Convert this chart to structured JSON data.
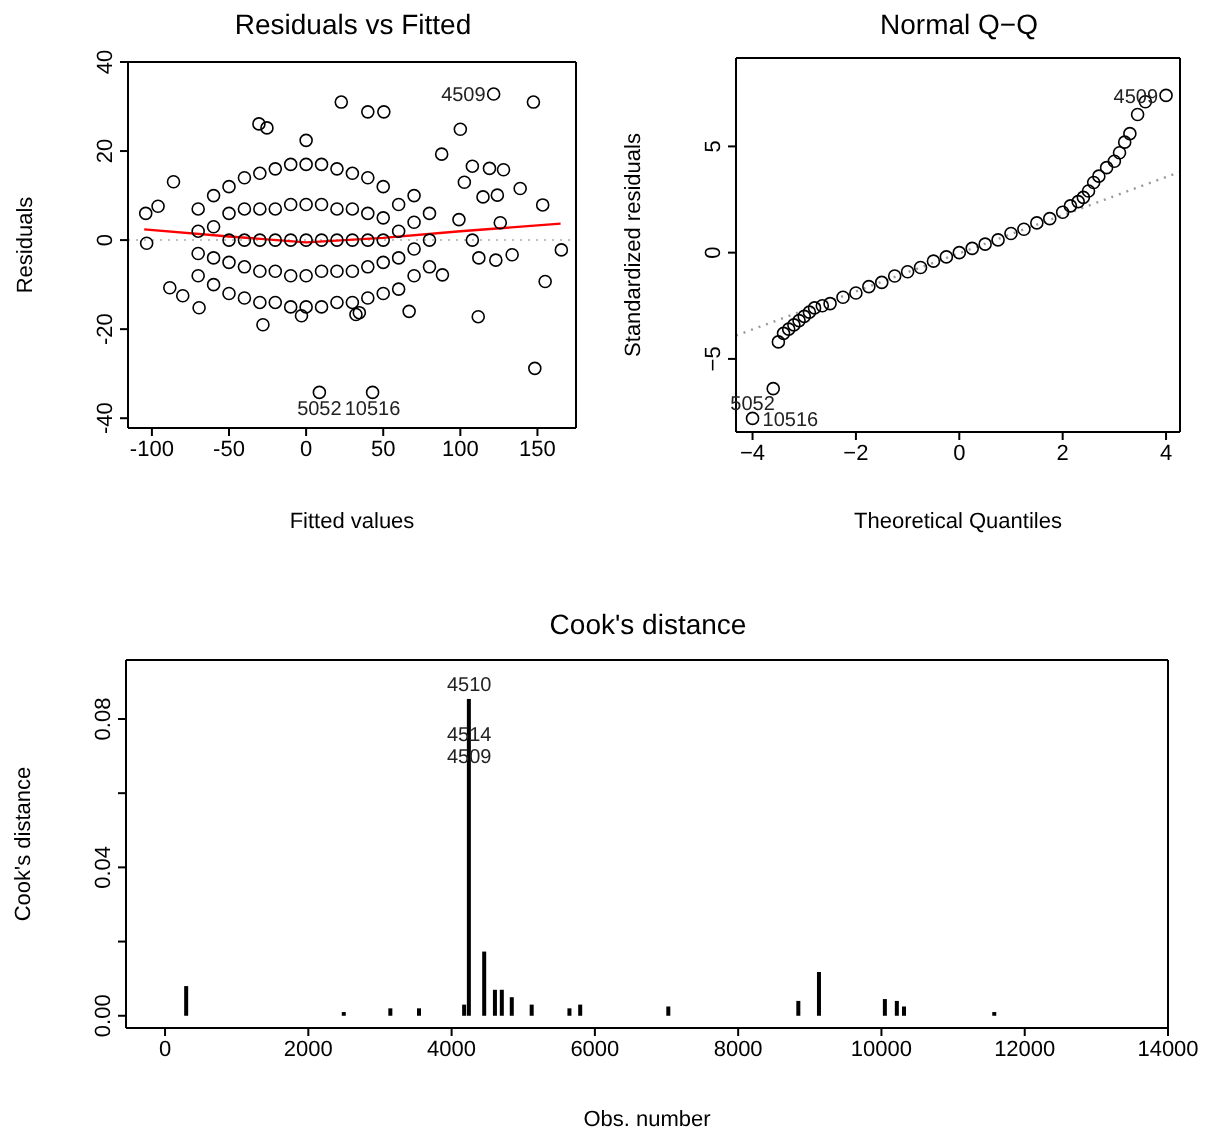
{
  "chart_data": [
    {
      "type": "scatter",
      "title": "Residuals vs Fitted",
      "xlabel": "Fitted values",
      "ylabel": "Residuals",
      "xlim": [
        -115.5,
        175
      ],
      "xticks": [
        -100,
        -50,
        0,
        50,
        100,
        150
      ],
      "ylim": [
        -42.2,
        40
      ],
      "yticks": [
        -40,
        -20,
        0,
        20,
        40
      ],
      "series": [
        {
          "type": "scatter",
          "marker": "circle",
          "color": "#000000",
          "x": [
            121.6,
            147.4,
            22.8,
            40,
            50.4,
            -30.6,
            -25.4,
            100,
            0,
            148.3,
            8.6,
            43.1,
            165.5,
            155,
            111.6,
            153.4,
            138.8,
            118.9,
            128,
            107.8,
            87.9,
            102.6,
            114.7,
            124,
            125.9,
            99.1,
            107.8,
            112,
            123,
            133.6,
            88.4,
            -96,
            -104,
            -88.4,
            -80,
            -69.4,
            -86,
            -28,
            -3,
            32.3,
            66.8,
            34.5,
            -103.4,
            -70,
            -70,
            -70,
            -70,
            -60,
            -60,
            -60,
            -60,
            -50,
            -50,
            -50,
            -50,
            -50,
            -40,
            -40,
            -40,
            -40,
            -40,
            -30,
            -30,
            -30,
            -30,
            -30,
            -20,
            -20,
            -20,
            -20,
            -20,
            -10,
            -10,
            -10,
            -10,
            -10,
            0,
            0,
            0,
            0,
            0,
            10,
            10,
            10,
            10,
            10,
            20,
            20,
            20,
            20,
            20,
            30,
            30,
            30,
            30,
            30,
            40,
            40,
            40,
            40,
            40,
            50,
            50,
            50,
            50,
            50,
            60,
            60,
            60,
            60,
            70,
            70,
            70,
            70,
            80,
            80,
            80
          ],
          "values": [
            32.8,
            31,
            31,
            28.8,
            28.8,
            26.1,
            25.2,
            24.9,
            22.4,
            -28.8,
            -34.2,
            -34.2,
            -2.2,
            -9.3,
            -17.2,
            7.9,
            11.6,
            16.1,
            15.8,
            16.6,
            19.3,
            13,
            9.7,
            10.1,
            3.9,
            4.6,
            0,
            -4,
            -4.5,
            -3.3,
            -7.8,
            7.6,
            6,
            -10.7,
            -12.5,
            -15.2,
            13.1,
            -19,
            -17,
            -16.7,
            -16,
            -16.3,
            -0.7,
            -8,
            -3,
            2,
            7,
            -10,
            -4,
            3,
            10,
            -12,
            -5,
            0,
            6,
            12,
            -13,
            -6,
            0,
            7,
            14,
            -14,
            -7,
            0,
            7,
            15,
            -14,
            -7,
            0,
            7,
            16,
            -15,
            -8,
            0,
            8,
            17,
            -15,
            -8,
            0,
            8,
            17,
            -15,
            -7,
            0,
            8,
            17,
            -14,
            -7,
            0,
            7,
            16,
            -14,
            -7,
            0,
            7,
            15,
            -13,
            -6,
            0,
            6,
            14,
            -12,
            -5,
            0,
            5,
            12,
            -11,
            -4,
            2,
            8,
            -8,
            -2,
            4,
            10,
            -6,
            0,
            6
          ]
        },
        {
          "type": "line",
          "marker": "none",
          "color": "#ff0000",
          "line_style": "solid",
          "x": [
            -105,
            -50,
            0,
            50,
            100,
            165
          ],
          "values": [
            2.4,
            0.8,
            -0.5,
            0.5,
            2,
            3.7
          ]
        }
      ],
      "ref_lines": [
        {
          "axis": "y",
          "value": 0,
          "color": "#bebebe",
          "line_style": "dotted"
        }
      ],
      "annotations": [
        {
          "text": "4509",
          "x": 121.6,
          "y": 32.8
        },
        {
          "text": "5052",
          "x": 8.6,
          "y": -34.2
        },
        {
          "text": "10516",
          "x": 43.1,
          "y": -34.2
        }
      ]
    },
    {
      "type": "scatter",
      "title": "Normal Q−Q",
      "xlabel": "Theoretical Quantiles",
      "ylabel": "Standardized residuals",
      "xlim": [
        -4.32,
        4.27
      ],
      "xticks": [
        {
          "value": -4,
          "label": "−4"
        },
        {
          "value": -2,
          "label": "−2"
        },
        0,
        2,
        4
      ],
      "ylim": [
        -8.44,
        9.16
      ],
      "yticks": [
        {
          "value": -5,
          "label": "−5"
        },
        0,
        5
      ],
      "series": [
        {
          "type": "scatter",
          "marker": "circle",
          "color": "#000000",
          "x": [
            -4,
            -3.6,
            -3.5,
            -3.4,
            -3.3,
            -3.2,
            -3.1,
            -3,
            -2.9,
            -2.8,
            -2.65,
            -2.5,
            -2.25,
            -2,
            -1.75,
            -1.5,
            -1.25,
            -1,
            -0.75,
            -0.5,
            -0.25,
            0,
            0.25,
            0.5,
            0.75,
            1,
            1.25,
            1.5,
            1.75,
            2,
            2.15,
            2.3,
            2.4,
            2.5,
            2.6,
            2.7,
            2.85,
            3,
            3.1,
            3.2,
            3.3,
            3.45,
            3.6,
            4
          ],
          "values": [
            -7.8,
            -6.4,
            -4.2,
            -3.8,
            -3.6,
            -3.4,
            -3.2,
            -3,
            -2.8,
            -2.6,
            -2.5,
            -2.4,
            -2.1,
            -1.9,
            -1.6,
            -1.4,
            -1.1,
            -0.9,
            -0.7,
            -0.4,
            -0.2,
            0,
            0.2,
            0.4,
            0.6,
            0.9,
            1.1,
            1.4,
            1.6,
            1.9,
            2.2,
            2.4,
            2.6,
            2.9,
            3.3,
            3.6,
            4,
            4.3,
            4.7,
            5.2,
            5.6,
            6.5,
            7.1,
            7.4
          ]
        },
        {
          "type": "line",
          "marker": "none",
          "color": "#999999",
          "line_style": "dotted",
          "x": [
            -4.32,
            4.27
          ],
          "values": [
            -3.9,
            3.8
          ]
        }
      ],
      "annotations": [
        {
          "text": "4509",
          "x": 4,
          "y": 7.4
        },
        {
          "text": "10516",
          "x": -4,
          "y": -7.8
        },
        {
          "text": "5052",
          "x": -4,
          "y": -7.8
        }
      ]
    },
    {
      "type": "bar",
      "title": "Cook's distance",
      "xlabel": "Obs. number",
      "ylabel": "Cook's distance",
      "color": "#000000",
      "xlim": [
        -545,
        14000
      ],
      "xticks": [
        0,
        2000,
        4000,
        6000,
        8000,
        10000,
        12000,
        14000
      ],
      "ylim": [
        -0.0033,
        0.0959
      ],
      "yticks": [
        {
          "value": 0,
          "label": "0.00"
        },
        {
          "value": 0.02,
          "label": null
        },
        {
          "value": 0.04,
          "label": "0.04"
        },
        {
          "value": 0.06,
          "label": null
        },
        {
          "value": 0.08,
          "label": "0.08"
        }
      ],
      "x": [
        300,
        2500,
        3150,
        3550,
        4180,
        4246,
        4460,
        4610,
        4706,
        4845,
        5123,
        5650,
        5800,
        7030,
        8845,
        9133,
        10053,
        10220,
        10320,
        11580
      ],
      "values": [
        0.008,
        0.001,
        0.002,
        0.002,
        0.003,
        0.0854,
        0.0173,
        0.007,
        0.007,
        0.005,
        0.003,
        0.002,
        0.003,
        0.0025,
        0.004,
        0.0118,
        0.0045,
        0.004,
        0.0025,
        0.001
      ],
      "annotations": [
        {
          "text": "4510",
          "x": 4246,
          "y": 0.0854
        },
        {
          "text": "4514",
          "x": 4246,
          "y": 0.072
        },
        {
          "text": "4509",
          "x": 4246,
          "y": 0.066
        }
      ]
    }
  ]
}
